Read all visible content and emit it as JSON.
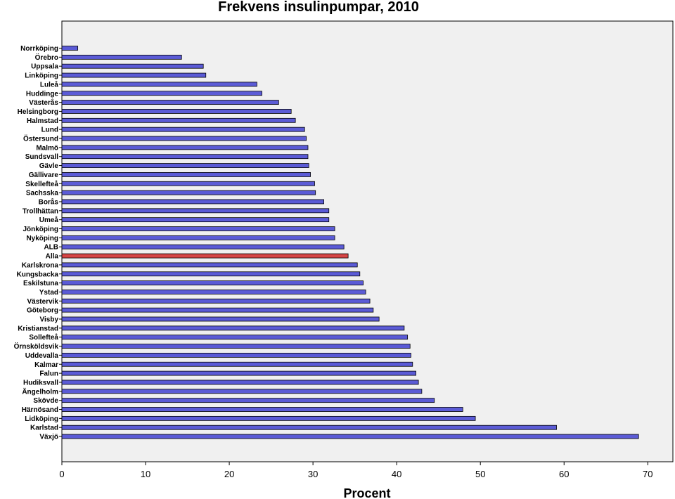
{
  "chart_data": {
    "type": "bar",
    "orientation": "horizontal",
    "title": "Frekvens insulinpumpar, 2010",
    "xlabel": "Procent",
    "ylabel": "",
    "xlim": [
      0,
      73
    ],
    "xticks": [
      0,
      10,
      20,
      30,
      40,
      50,
      60,
      70
    ],
    "grid": false,
    "legend": "none",
    "colors": {
      "bar": "#5b5bd6",
      "highlight": "#d64545",
      "bar_edge": "#000000",
      "plot_background": "#f0f0f0"
    },
    "highlight_category": "Alla",
    "categories": [
      "Norrköping",
      "Örebro",
      "Uppsala",
      "Linköping",
      "Luleå",
      "Huddinge",
      "Västerås",
      "Helsingborg",
      "Halmstad",
      "Lund",
      "Östersund",
      "Malmö",
      "Sundsvall",
      "Gävle",
      "Gällivare",
      "Skellefteå",
      "Sachsska",
      "Borås",
      "Trollhättan",
      "Umeå",
      "Jönköping",
      "Nyköping",
      "ALB",
      "Alla",
      "Karlskrona",
      "Kungsbacka",
      "Eskilstuna",
      "Ystad",
      "Västervik",
      "Göteborg",
      "Visby",
      "Kristianstad",
      "Sollefteå",
      "Örnsköldsvik",
      "Uddevalla",
      "Kalmar",
      "Falun",
      "Hudiksvall",
      "Ängelholm",
      "Skövde",
      "Härnösand",
      "Lidköping",
      "Karlstad",
      "Växjö"
    ],
    "values": [
      1.9,
      14.3,
      16.9,
      17.2,
      23.3,
      23.9,
      25.9,
      27.4,
      27.9,
      29.0,
      29.2,
      29.4,
      29.4,
      29.5,
      29.7,
      30.2,
      30.3,
      31.3,
      31.9,
      31.9,
      32.6,
      32.6,
      33.7,
      34.2,
      35.3,
      35.6,
      36.0,
      36.3,
      36.8,
      37.2,
      37.9,
      40.9,
      41.3,
      41.6,
      41.7,
      41.9,
      42.3,
      42.6,
      43.0,
      44.5,
      47.9,
      49.4,
      59.1,
      68.9
    ]
  }
}
